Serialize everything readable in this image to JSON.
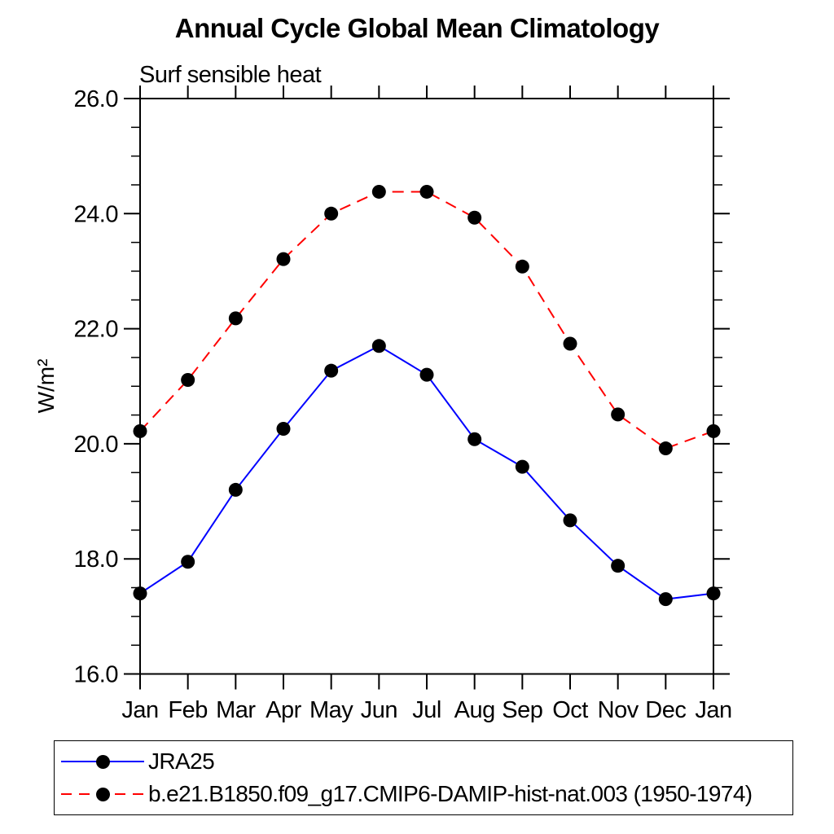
{
  "page": {
    "background": "#ffffff"
  },
  "chart_data": {
    "type": "line",
    "title": "Annual Cycle Global Mean Climatology",
    "subtitle": "Surf sensible heat",
    "ylabel": "W/m²",
    "xlabel": "",
    "categories": [
      "Jan",
      "Feb",
      "Mar",
      "Apr",
      "May",
      "Jun",
      "Jul",
      "Aug",
      "Sep",
      "Oct",
      "Nov",
      "Dec",
      "Jan"
    ],
    "ylim": [
      16.0,
      26.0
    ],
    "ytick_step": 2.0,
    "ytick_labels": [
      "16.0",
      "18.0",
      "20.0",
      "22.0",
      "24.0",
      "26.0"
    ],
    "yminor_step": 0.5,
    "grid": false,
    "axis_color": "#000000",
    "marker": {
      "shape": "filled-circle",
      "color": "#000000",
      "radius": 8.5
    },
    "legend_position": "bottom-left",
    "series": [
      {
        "name": "JRA25",
        "color": "#0000ff",
        "line_style": "solid",
        "values": [
          17.4,
          17.95,
          19.2,
          20.26,
          21.27,
          21.7,
          21.2,
          20.08,
          19.6,
          18.67,
          17.88,
          17.3,
          17.4
        ]
      },
      {
        "name": "b.e21.B1850.f09_g17.CMIP6-DAMIP-hist-nat.003 (1950-1974)",
        "color": "#ff0000",
        "line_style": "dashed",
        "values": [
          20.22,
          21.11,
          22.18,
          23.21,
          24.0,
          24.38,
          24.38,
          23.93,
          23.08,
          21.74,
          20.51,
          19.92,
          20.22
        ]
      }
    ]
  }
}
